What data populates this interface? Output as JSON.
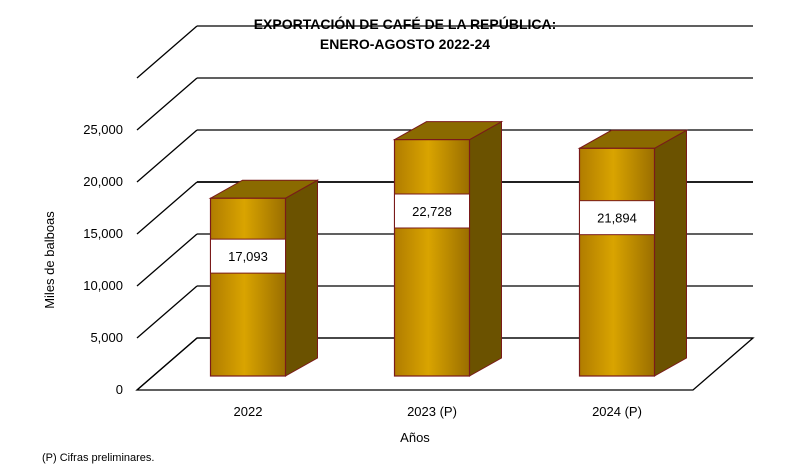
{
  "chart_data": {
    "type": "bar",
    "title_line1": "EXPORTACIÓN DE CAFÉ DE LA REPÚBLICA:",
    "title_line2": "ENERO-AGOSTO  2022-24",
    "categories": [
      "2022",
      "2023 (P)",
      "2024 (P)"
    ],
    "values": [
      17093,
      22728,
      21894
    ],
    "value_labels": [
      "17,093",
      "22,728",
      "21,894"
    ],
    "xlabel": "Años",
    "ylabel": "Miles de balboas",
    "ylim": [
      0,
      30000
    ],
    "yticks": [
      0,
      5000,
      10000,
      15000,
      20000,
      25000
    ],
    "ytick_labels": [
      "0",
      "5,000",
      "10,000",
      "15,000",
      "20,000",
      "25,000"
    ],
    "grid": true,
    "bar_color": "#c89400",
    "bar_top_color": "#8a6a00",
    "bar_side_color": "#6b5200",
    "bar_outline_color": "#7a1a1a"
  },
  "footnote": "(P) Cifras preliminares."
}
